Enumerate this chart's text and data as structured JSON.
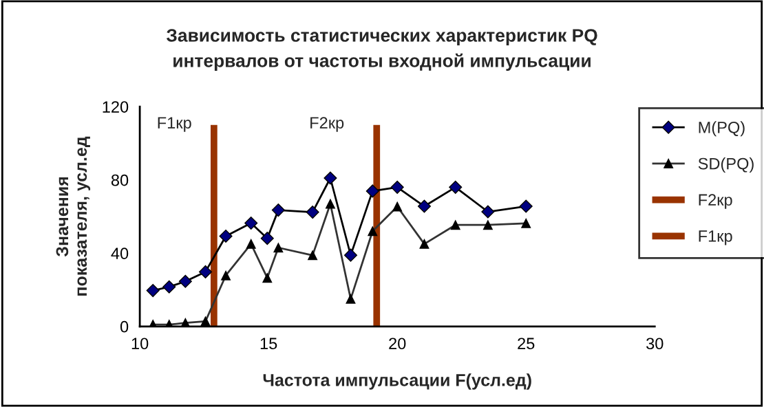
{
  "chart_data": {
    "type": "line",
    "title": "Зависимость статистических характеристик PQ\nинтервалов от частоты входной импульсации",
    "xlabel": "Частота импульсации F(усл.ед)",
    "ylabel": "Значения\nпоказателя, усл.ед",
    "xlim": [
      10,
      30
    ],
    "xticks": [
      10,
      15,
      20,
      25,
      30
    ],
    "ylim": [
      0,
      120
    ],
    "yticks": [
      0,
      40,
      80,
      120
    ],
    "grid": false,
    "legend": "right",
    "series": [
      {
        "name": "M(PQ)",
        "color": "#000080",
        "marker": "diamond",
        "x": [
          10.51,
          11.14,
          11.77,
          12.55,
          13.34,
          14.32,
          14.95,
          15.38,
          16.71,
          17.4,
          18.19,
          19.04,
          20.0,
          21.05,
          22.26,
          23.52,
          25.0
        ],
        "values": [
          19.6,
          21.6,
          24.6,
          29.8,
          49.3,
          56.4,
          48.1,
          63.5,
          62.4,
          81,
          38.9,
          73.9,
          76,
          65.6,
          76,
          62.6,
          65.6
        ]
      },
      {
        "name": "SD(PQ)",
        "color": "#000000",
        "marker": "triangle",
        "x": [
          10.51,
          11.14,
          11.77,
          12.55,
          13.34,
          14.32,
          14.95,
          15.38,
          16.71,
          17.4,
          18.19,
          19.04,
          20.0,
          21.05,
          22.26,
          23.52,
          25.0
        ],
        "values": [
          1,
          1,
          1.9,
          2.8,
          27.8,
          45,
          26.5,
          43,
          38.8,
          66.9,
          15,
          52,
          65.4,
          45,
          55.4,
          55.4,
          56.3
        ]
      },
      {
        "name": "F2кр",
        "color": "#993300",
        "marker": "none",
        "x": [
          19.2,
          19.2
        ],
        "values": [
          0,
          110
        ]
      },
      {
        "name": "F1кр",
        "color": "#993300",
        "marker": "none",
        "x": [
          12.88,
          12.88
        ],
        "values": [
          0,
          110
        ]
      }
    ],
    "annotations": [
      "F1кр",
      "F2кр"
    ]
  }
}
